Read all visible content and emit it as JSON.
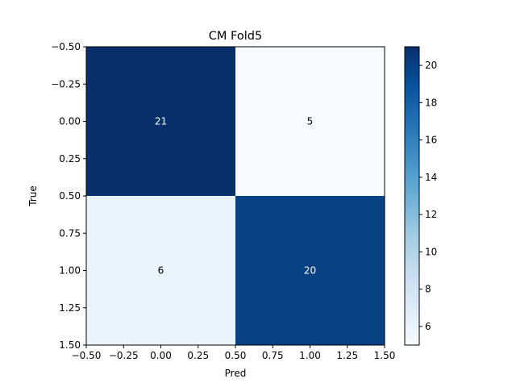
{
  "chart_data": {
    "type": "heatmap",
    "title": "CM Fold5",
    "xlabel": "Pred",
    "ylabel": "True",
    "rows": [
      0,
      1
    ],
    "cols": [
      0,
      1
    ],
    "values": [
      [
        21,
        5
      ],
      [
        6,
        20
      ]
    ],
    "xlim": [
      -0.5,
      1.5
    ],
    "ylim": [
      1.5,
      -0.5
    ],
    "xticks": [
      "−0.50",
      "−0.25",
      "0.00",
      "0.25",
      "0.50",
      "0.75",
      "1.00",
      "1.25",
      "1.50"
    ],
    "yticks": [
      "−0.50",
      "−0.25",
      "0.00",
      "0.25",
      "0.50",
      "0.75",
      "1.00",
      "1.25",
      "1.50"
    ],
    "colormap": "Blues",
    "colorbar": {
      "range": [
        5,
        21
      ],
      "ticks": [
        "6",
        "8",
        "10",
        "12",
        "14",
        "16",
        "18",
        "20"
      ]
    },
    "grid": false
  }
}
